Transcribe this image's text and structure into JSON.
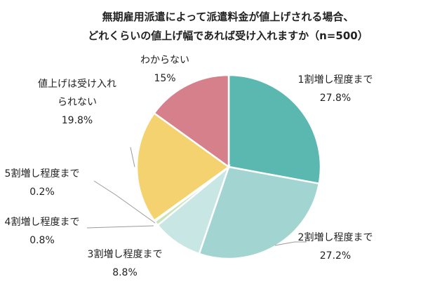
{
  "chart_data": {
    "type": "pie",
    "title_lines": [
      "無期雇用派遣によって派遣料金が値上げされる場合、",
      "どれくらいの値上げ幅であれば受け入れますか（n=500）"
    ],
    "slices": [
      {
        "label_lines": [
          "1割増し程度まで"
        ],
        "value": 27.8,
        "value_text": "27.8%",
        "color": "#5bb8b1"
      },
      {
        "label_lines": [
          "2割増し程度まで"
        ],
        "value": 27.2,
        "value_text": "27.2%",
        "color": "#a2d5d2"
      },
      {
        "label_lines": [
          "3割増し程度まで"
        ],
        "value": 8.8,
        "value_text": "8.8%",
        "color": "#c7e6e4"
      },
      {
        "label_lines": [
          "4割増し程度まで"
        ],
        "value": 0.8,
        "value_text": "0.8%",
        "color": "#c9e4b8"
      },
      {
        "label_lines": [
          "5割増し程度まで"
        ],
        "value": 0.2,
        "value_text": "0.2%",
        "color": "#d9e8a8"
      },
      {
        "label_lines": [
          "値上げは受け入れ",
          "られない"
        ],
        "value": 19.8,
        "value_text": "19.8%",
        "color": "#f4d270"
      },
      {
        "label_lines": [
          "わからない"
        ],
        "value": 15,
        "value_text": "15%",
        "color": "#d5808a"
      }
    ]
  }
}
